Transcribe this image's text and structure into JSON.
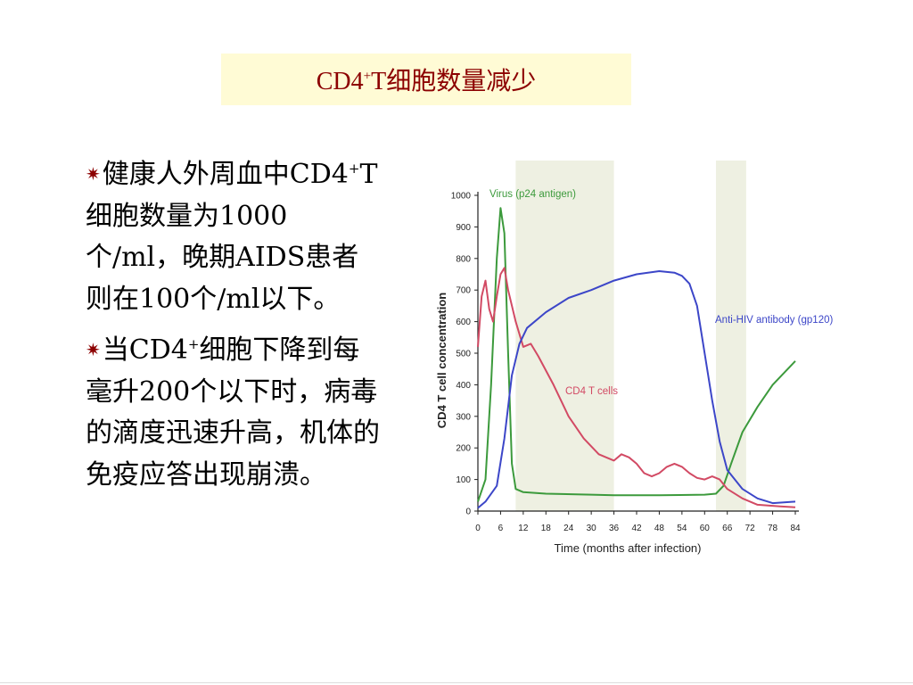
{
  "slide": {
    "title": {
      "prefix": "CD4",
      "sup": "+",
      "suffix": "T细胞数量减少"
    },
    "bullets": [
      {
        "parts": [
          "健康人外周血中CD4",
          "+",
          "T细胞数量为1000个/ml，晚期AIDS患者则在100个/ml以下。"
        ]
      },
      {
        "parts": [
          "当CD4",
          "+",
          "细胞下降到每毫升200个以下时，病毒的滴度迅速升高，机体的免疫应答出现崩溃。"
        ]
      }
    ]
  },
  "chart_data": {
    "type": "line",
    "xlabel": "Time (months after infection)",
    "ylabel": "CD4 T cell concentration",
    "xlim": [
      0,
      84
    ],
    "ylim": [
      0,
      1000
    ],
    "xticks": [
      "0",
      "6",
      "12",
      "18",
      "24",
      "30",
      "36",
      "42",
      "48",
      "54",
      "60",
      "66",
      "72",
      "78",
      "84"
    ],
    "yticks": [
      "0",
      "100",
      "200",
      "300",
      "400",
      "500",
      "600",
      "700",
      "800",
      "900",
      "1000"
    ],
    "shaded_bands": [
      [
        10,
        36
      ],
      [
        63,
        71
      ]
    ],
    "series": [
      {
        "name": "Virus (p24 antigen)",
        "color": "#3c9a3c",
        "points": [
          [
            0,
            30
          ],
          [
            2,
            100
          ],
          [
            3.5,
            400
          ],
          [
            5,
            800
          ],
          [
            6,
            960
          ],
          [
            7,
            880
          ],
          [
            8,
            500
          ],
          [
            9,
            150
          ],
          [
            10,
            70
          ],
          [
            12,
            60
          ],
          [
            18,
            55
          ],
          [
            30,
            52
          ],
          [
            36,
            50
          ],
          [
            48,
            50
          ],
          [
            60,
            52
          ],
          [
            63,
            55
          ],
          [
            65,
            80
          ],
          [
            67,
            150
          ],
          [
            70,
            250
          ],
          [
            74,
            330
          ],
          [
            78,
            400
          ],
          [
            84,
            475
          ]
        ]
      },
      {
        "name": "CD4 T cells",
        "color": "#d24a64",
        "points": [
          [
            0,
            520
          ],
          [
            1,
            680
          ],
          [
            2,
            730
          ],
          [
            3,
            640
          ],
          [
            4,
            600
          ],
          [
            5,
            680
          ],
          [
            6,
            750
          ],
          [
            7,
            770
          ],
          [
            8,
            700
          ],
          [
            10,
            600
          ],
          [
            12,
            520
          ],
          [
            14,
            530
          ],
          [
            16,
            490
          ],
          [
            20,
            400
          ],
          [
            24,
            300
          ],
          [
            28,
            230
          ],
          [
            32,
            180
          ],
          [
            36,
            160
          ],
          [
            38,
            180
          ],
          [
            40,
            170
          ],
          [
            42,
            150
          ],
          [
            44,
            120
          ],
          [
            46,
            110
          ],
          [
            48,
            120
          ],
          [
            50,
            140
          ],
          [
            52,
            150
          ],
          [
            54,
            140
          ],
          [
            56,
            120
          ],
          [
            58,
            105
          ],
          [
            60,
            100
          ],
          [
            62,
            110
          ],
          [
            64,
            100
          ],
          [
            66,
            70
          ],
          [
            70,
            40
          ],
          [
            74,
            20
          ],
          [
            80,
            15
          ],
          [
            84,
            12
          ]
        ]
      },
      {
        "name": "Anti-HIV antibody (gp120)",
        "color": "#3c46c8",
        "points": [
          [
            0,
            10
          ],
          [
            2,
            30
          ],
          [
            5,
            80
          ],
          [
            7,
            230
          ],
          [
            9,
            430
          ],
          [
            11,
            530
          ],
          [
            13,
            580
          ],
          [
            18,
            630
          ],
          [
            24,
            675
          ],
          [
            30,
            700
          ],
          [
            36,
            730
          ],
          [
            42,
            750
          ],
          [
            48,
            760
          ],
          [
            52,
            755
          ],
          [
            54,
            745
          ],
          [
            56,
            720
          ],
          [
            58,
            650
          ],
          [
            60,
            500
          ],
          [
            62,
            350
          ],
          [
            64,
            220
          ],
          [
            66,
            130
          ],
          [
            70,
            70
          ],
          [
            74,
            40
          ],
          [
            78,
            25
          ],
          [
            84,
            30
          ]
        ]
      }
    ],
    "annotations": [
      {
        "text": "Virus (p24 antigen)",
        "color": "#3c9a3c"
      },
      {
        "text": "CD4 T cells",
        "color": "#d24a64"
      },
      {
        "text": "Anti-HIV antibody (gp120)",
        "color": "#3c46c8"
      }
    ]
  }
}
